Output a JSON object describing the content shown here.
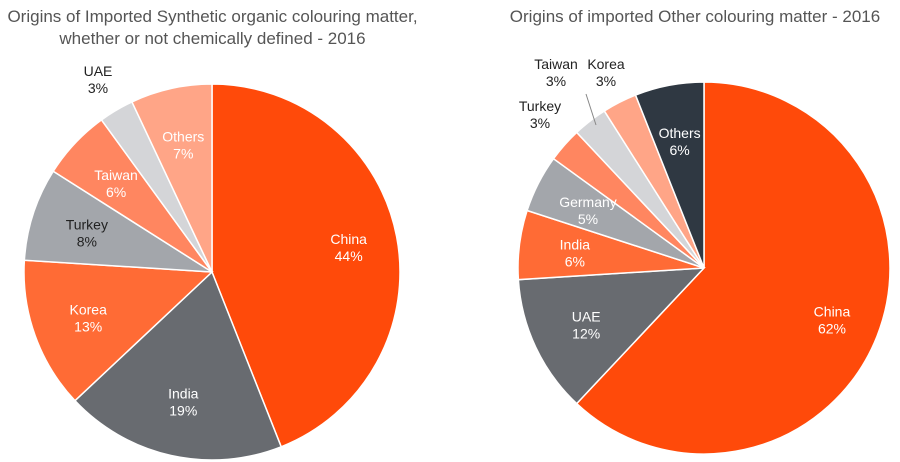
{
  "chart_data": [
    {
      "type": "pie",
      "title": "Origins of Imported Synthetic organic colouring matter, whether or not chemically defined - 2016",
      "slices": [
        {
          "label": "China",
          "value": 44,
          "display": "44%",
          "color": "#FF4A0A",
          "text_color": "#ffffff"
        },
        {
          "label": "India",
          "value": 19,
          "display": "19%",
          "color": "#686B70",
          "text_color": "#ffffff"
        },
        {
          "label": "Korea",
          "value": 13,
          "display": "13%",
          "color": "#FF6B35",
          "text_color": "#ffffff"
        },
        {
          "label": "Turkey",
          "value": 8,
          "display": "8%",
          "color": "#A3A6AB",
          "text_color": "#222222"
        },
        {
          "label": "Taiwan",
          "value": 6,
          "display": "6%",
          "color": "#FF8660",
          "text_color": "#ffffff"
        },
        {
          "label": "UAE",
          "value": 3,
          "display": "3%",
          "color": "#D4D5D8",
          "text_color": "#222222"
        },
        {
          "label": "Others",
          "value": 7,
          "display": "7%",
          "color": "#FFA587",
          "text_color": "#ffffff"
        }
      ]
    },
    {
      "type": "pie",
      "title": "Origins of imported Other colouring matter - 2016",
      "slices": [
        {
          "label": "China",
          "value": 62,
          "display": "62%",
          "color": "#FF4A0A",
          "text_color": "#ffffff"
        },
        {
          "label": "UAE",
          "value": 12,
          "display": "12%",
          "color": "#686B70",
          "text_color": "#ffffff"
        },
        {
          "label": "India",
          "value": 6,
          "display": "6%",
          "color": "#FF6B35",
          "text_color": "#ffffff"
        },
        {
          "label": "Germany",
          "value": 5,
          "display": "5%",
          "color": "#A3A6AB",
          "text_color": "#ffffff"
        },
        {
          "label": "Turkey",
          "value": 3,
          "display": "3%",
          "color": "#FF8660",
          "text_color": "#222222"
        },
        {
          "label": "Taiwan",
          "value": 3,
          "display": "3%",
          "color": "#D4D5D8",
          "text_color": "#222222"
        },
        {
          "label": "Korea",
          "value": 3,
          "display": "3%",
          "color": "#FFA587",
          "text_color": "#222222"
        },
        {
          "label": "Others",
          "value": 6,
          "display": "6%",
          "color": "#2F3842",
          "text_color": "#ffffff"
        }
      ]
    }
  ]
}
